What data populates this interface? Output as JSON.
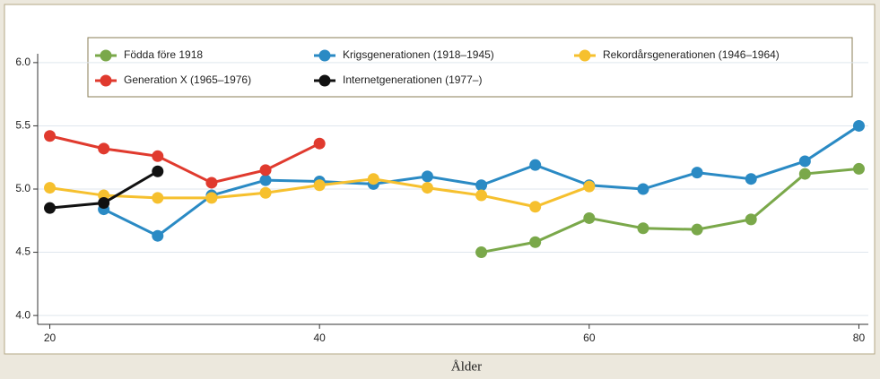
{
  "chart_data": {
    "type": "line",
    "xlabel": "Ålder",
    "x": [
      20,
      24,
      28,
      32,
      36,
      40,
      44,
      48,
      52,
      56,
      60,
      64,
      68,
      72,
      76,
      80
    ],
    "series": [
      {
        "name": "Födda före 1918",
        "color": "#7aa84a",
        "values": [
          null,
          null,
          null,
          null,
          null,
          null,
          null,
          null,
          4.5,
          4.58,
          4.77,
          4.69,
          4.68,
          4.76,
          5.12,
          5.16
        ]
      },
      {
        "name": "Krigsgenerationen (1918–1945)",
        "color": "#2a8ac4",
        "values": [
          null,
          4.84,
          4.63,
          4.95,
          5.07,
          5.06,
          5.04,
          5.1,
          5.03,
          5.19,
          5.03,
          5.0,
          5.13,
          5.08,
          5.22,
          5.5
        ]
      },
      {
        "name": "Rekordårsgenerationen (1946–1964)",
        "color": "#f6c02e",
        "values": [
          5.01,
          4.95,
          4.93,
          4.93,
          4.97,
          5.03,
          5.08,
          5.01,
          4.95,
          4.86,
          5.02,
          null,
          null,
          null,
          null,
          null
        ]
      },
      {
        "name": "Generation X (1965–1976)",
        "color": "#e03a2e",
        "values": [
          5.42,
          5.32,
          5.26,
          5.05,
          5.15,
          5.36,
          null,
          null,
          null,
          null,
          null,
          null,
          null,
          null,
          null,
          null
        ]
      },
      {
        "name": "Internetgenerationen (1977–)",
        "color": "#111111",
        "values": [
          4.85,
          4.89,
          5.14,
          null,
          null,
          null,
          null,
          null,
          null,
          null,
          null,
          null,
          null,
          null,
          null,
          null
        ]
      }
    ],
    "xlim": [
      19.1,
      80.7
    ],
    "ylim": [
      3.93,
      6.07
    ],
    "xticks": [
      20,
      40,
      60,
      80
    ],
    "yticks": [
      {
        "value": 4,
        "label": "4.0"
      },
      4.5,
      {
        "value": 5,
        "label": "5.0"
      },
      5.5,
      {
        "value": 6,
        "label": "6.0"
      }
    ],
    "grid": true
  }
}
